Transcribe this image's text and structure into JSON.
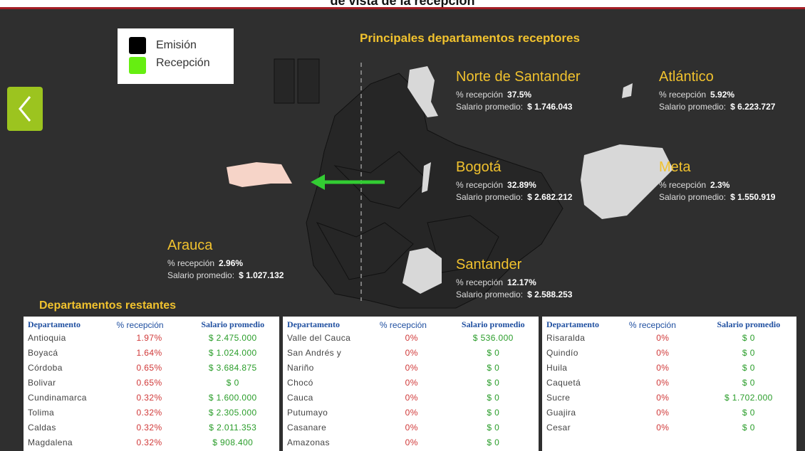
{
  "header": {
    "title": "de vista de la recepción"
  },
  "legend": {
    "items": [
      "Emisión",
      "Recepción"
    ]
  },
  "featured": {
    "title": "Principales departamentos receptores",
    "departments": [
      {
        "name": "Norte de Santander",
        "pct_label": "% recepción",
        "pct": "37.5%",
        "salary_label": "Salario promedio:",
        "salary": "$ 1.746.043"
      },
      {
        "name": "Atlántico",
        "pct_label": "% recepción",
        "pct": "5.92%",
        "salary_label": "Salario promedio:",
        "salary": "$ 6.223.727"
      },
      {
        "name": "Bogotá",
        "pct_label": "% recepción",
        "pct": "32.89%",
        "salary_label": "Salario promedio:",
        "salary": "$ 2.682.212"
      },
      {
        "name": "Meta",
        "pct_label": "% recepción",
        "pct": "2.3%",
        "salary_label": "Salario promedio:",
        "salary": "$ 1.550.919"
      },
      {
        "name": "Santander",
        "pct_label": "% recepción",
        "pct": "12.17%",
        "salary_label": "Salario promedio:",
        "salary": "$ 2.588.253"
      },
      {
        "name": "Arauca",
        "pct_label": "% recepción",
        "pct": "2.96%",
        "salary_label": "Salario promedio:",
        "salary": "$ 1.027.132"
      }
    ]
  },
  "remaining": {
    "title": "Departamentos restantes",
    "tables": [
      {
        "columns": [
          "Departamento",
          "% recepción",
          "Salario promedio"
        ],
        "rows": [
          [
            "Antioquia",
            "1.97%",
            "$ 2.475.000"
          ],
          [
            "Boyacá",
            "1.64%",
            "$ 1.024.000"
          ],
          [
            "Córdoba",
            "0.65%",
            "$ 3.684.875"
          ],
          [
            "Bolivar",
            "0.65%",
            "$ 0"
          ],
          [
            "Cundinamarca",
            "0.32%",
            "$ 1.600.000"
          ],
          [
            "Tolima",
            "0.32%",
            "$ 2.305.000"
          ],
          [
            "Caldas",
            "0.32%",
            "$ 2.011.353"
          ],
          [
            "Magdalena",
            "0.32%",
            "$ 908.400"
          ]
        ]
      },
      {
        "columns": [
          "Departamento",
          "% recepción",
          "Salario promedio"
        ],
        "rows": [
          [
            "Valle del Cauca",
            "0%",
            "$ 536.000"
          ],
          [
            "San Andrés y",
            "0%",
            "$ 0"
          ],
          [
            "Nariño",
            "0%",
            "$ 0"
          ],
          [
            "Chocó",
            "0%",
            "$ 0"
          ],
          [
            "Cauca",
            "0%",
            "$ 0"
          ],
          [
            "Putumayo",
            "0%",
            "$ 0"
          ],
          [
            "Casanare",
            "0%",
            "$ 0"
          ],
          [
            "Amazonas",
            "0%",
            "$ 0"
          ]
        ]
      },
      {
        "columns": [
          "Departamento",
          "% recepción",
          "Salario promedio"
        ],
        "rows": [
          [
            "Risaralda",
            "0%",
            "$ 0"
          ],
          [
            "Quindío",
            "0%",
            "$ 0"
          ],
          [
            "Huila",
            "0%",
            "$ 0"
          ],
          [
            "Caquetá",
            "0%",
            "$ 0"
          ],
          [
            "Sucre",
            "0%",
            "$ 1.702.000"
          ],
          [
            "Guajira",
            "0%",
            "$ 0"
          ],
          [
            "Cesar",
            "0%",
            "$ 0"
          ]
        ]
      }
    ]
  }
}
